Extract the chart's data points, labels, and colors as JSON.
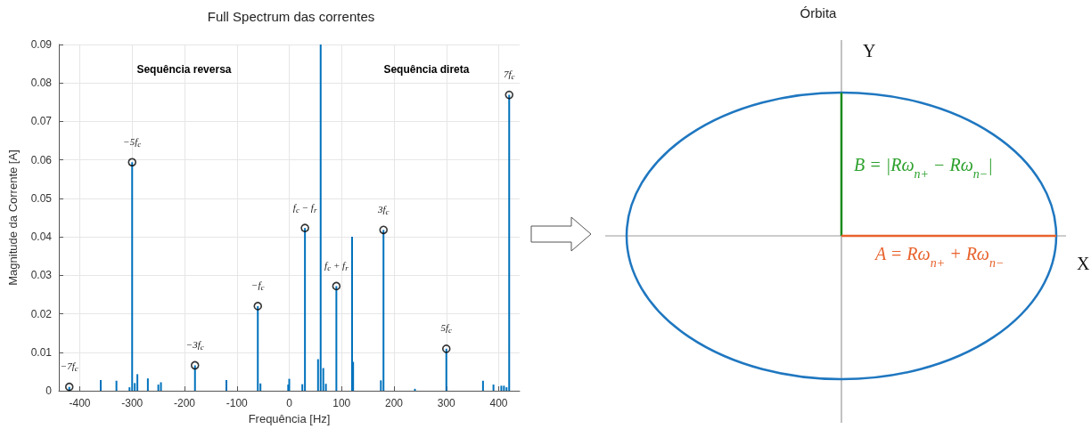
{
  "chart_data": [
    {
      "type": "bar",
      "title": "Full Spectrum das correntes",
      "xlabel": "Frequência [Hz]",
      "ylabel": "Magnitude da Corrente [A]",
      "xlim": [
        -440,
        440
      ],
      "xticks": [
        -400,
        -300,
        -200,
        -100,
        0,
        100,
        200,
        300,
        400
      ],
      "ylim": [
        0,
        0.09
      ],
      "yticks": [
        0,
        0.01,
        0.02,
        0.03,
        0.04,
        0.05,
        0.06,
        0.07,
        0.08,
        0.09
      ],
      "grid": true,
      "series": [
        {
          "color": "#0072bd",
          "x": [
            -420,
            -360,
            -330,
            -305,
            -300,
            -295,
            -290,
            -270,
            -250,
            -245,
            -180,
            -120,
            -60,
            -55,
            -2,
            0,
            25,
            30,
            55,
            60,
            65,
            70,
            90,
            120,
            122,
            175,
            180,
            240,
            300,
            370,
            390,
            405,
            410,
            415,
            420
          ],
          "values": [
            0.001,
            0.0028,
            0.0026,
            0.0009,
            0.0594,
            0.002,
            0.0043,
            0.0032,
            0.0016,
            0.0022,
            0.0066,
            0.0028,
            0.022,
            0.0019,
            0.0016,
            0.0031,
            0.0017,
            0.0423,
            0.0082,
            0.09,
            0.0059,
            0.0018,
            0.0272,
            0.04,
            0.0075,
            0.0027,
            0.0418,
            0.0005,
            0.0109,
            0.0026,
            0.0016,
            0.0013,
            0.0013,
            0.0009,
            0.0769
          ]
        },
        {
          "type": "scatter",
          "marker": "circle",
          "color": "#000000",
          "x": [
            -420,
            -300,
            -180,
            -60,
            30,
            90,
            180,
            300,
            420
          ],
          "values": [
            0.001,
            0.0594,
            0.0066,
            0.022,
            0.0423,
            0.0272,
            0.0418,
            0.0109,
            0.0769
          ]
        }
      ],
      "annotations": [
        "Sequência reversa",
        "Sequência direta",
        {
          "text": "−7f$_{c}$",
          "x": -420,
          "y": 0.001
        },
        {
          "text": "−5f$_{c}$",
          "x": -300,
          "y": 0.0594
        },
        {
          "text": "−3f$_{c}$",
          "x": -180,
          "y": 0.0066
        },
        {
          "text": "−f$_{c}$",
          "x": -60,
          "y": 0.022
        },
        {
          "text": "f$_{c}$ − f$_{r}$",
          "x": 30,
          "y": 0.0423
        },
        {
          "text": "f$_{c}$ + f$_{r}$",
          "x": 90,
          "y": 0.0272
        },
        {
          "text": "3f$_{c}$",
          "x": 180,
          "y": 0.0418
        },
        {
          "text": "5f$_{c}$",
          "x": 300,
          "y": 0.0109
        },
        {
          "text": "7f$_{c}$",
          "x": 420,
          "y": 0.0769
        }
      ]
    },
    {
      "type": "other",
      "title": "Órbita",
      "annotations": [
        "Y",
        "X",
        "B = |Rω$_{n+}$ − Rω$_{n−}$|",
        "A = Rω$_{n+}$ + Rω$_{n−}$"
      ]
    }
  ]
}
